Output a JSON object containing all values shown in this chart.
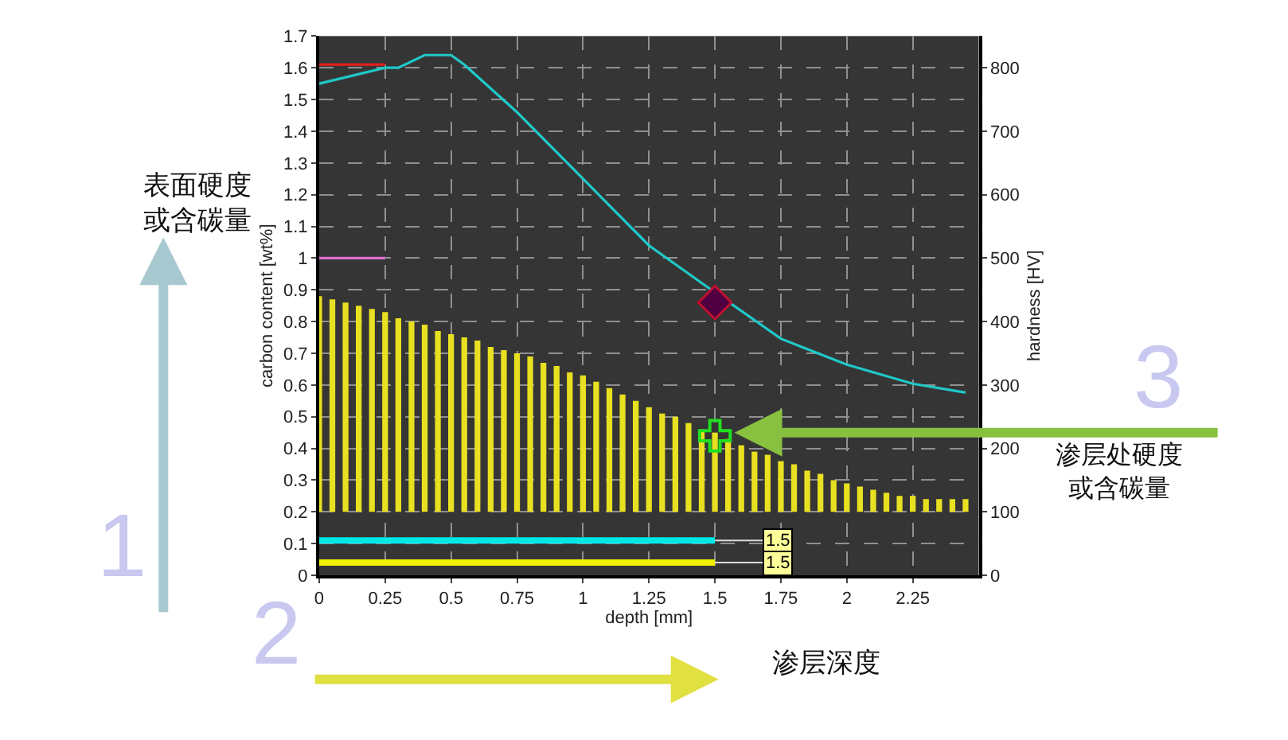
{
  "chart_data": {
    "type": "bar",
    "xlabel": "depth [mm]",
    "ylabel": "carbon content [wt%]",
    "y2label": "hardness [HV]",
    "xlim": [
      0,
      2.5
    ],
    "xticks": [
      0,
      0.25,
      0.5,
      0.75,
      1,
      1.25,
      1.5,
      1.75,
      2,
      2.25
    ],
    "ylim": [
      0,
      1.7
    ],
    "yticks": [
      0,
      0.1,
      0.2,
      0.3,
      0.4,
      0.5,
      0.6,
      0.7,
      0.8,
      0.9,
      1,
      1.1,
      1.2,
      1.3,
      1.4,
      1.5,
      1.6,
      1.7
    ],
    "y2lim": [
      0,
      850
    ],
    "y2ticks": [
      0,
      100,
      200,
      300,
      400,
      500,
      600,
      700,
      800
    ],
    "grid": true,
    "series": [
      {
        "color": "#e8e020",
        "x": [
          0,
          0.05,
          0.1,
          0.15,
          0.2,
          0.25,
          0.3,
          0.35,
          0.4,
          0.45,
          0.5,
          0.55,
          0.6,
          0.65,
          0.7,
          0.75,
          0.8,
          0.85,
          0.9,
          0.95,
          1.0,
          1.05,
          1.1,
          1.15,
          1.2,
          1.25,
          1.3,
          1.35,
          1.4,
          1.45,
          1.5,
          1.55,
          1.6,
          1.65,
          1.7,
          1.75,
          1.8,
          1.85,
          1.9,
          1.95,
          2.0,
          2.05,
          2.1,
          2.15,
          2.2,
          2.25,
          2.3,
          2.35,
          2.4,
          2.45
        ],
        "base": [
          0.2,
          0.2,
          0.2,
          0.2,
          0.2,
          0.2,
          0.2,
          0.2,
          0.2,
          0.2,
          0.2,
          0.2,
          0.2,
          0.2,
          0.2,
          0.2,
          0.2,
          0.2,
          0.2,
          0.2,
          0.2,
          0.2,
          0.2,
          0.2,
          0.2,
          0.2,
          0.2,
          0.2,
          0.2,
          0.2,
          0.2,
          0.2,
          0.2,
          0.2,
          0.2,
          0.2,
          0.2,
          0.2,
          0.2,
          0.2,
          0.2,
          0.2,
          0.2,
          0.2,
          0.2,
          0.2,
          0.2,
          0.2,
          0.2,
          0.2
        ],
        "values": [
          0.68,
          0.67,
          0.66,
          0.65,
          0.64,
          0.63,
          0.61,
          0.6,
          0.59,
          0.57,
          0.56,
          0.55,
          0.54,
          0.52,
          0.51,
          0.5,
          0.49,
          0.47,
          0.46,
          0.44,
          0.43,
          0.41,
          0.39,
          0.37,
          0.35,
          0.33,
          0.31,
          0.3,
          0.28,
          0.26,
          0.25,
          0.23,
          0.21,
          0.19,
          0.18,
          0.16,
          0.15,
          0.13,
          0.12,
          0.1,
          0.09,
          0.08,
          0.07,
          0.06,
          0.05,
          0.05,
          0.04,
          0.04,
          0.04,
          0.04
        ]
      },
      {
        "type": "line",
        "axis": "y2",
        "color": "#20c8c8",
        "x": [
          0,
          0.25,
          0.3,
          0.4,
          0.5,
          0.55,
          0.75,
          1.0,
          1.25,
          1.5,
          1.75,
          2.0,
          2.25,
          2.45
        ],
        "values": [
          775,
          800,
          800,
          820,
          820,
          805,
          730,
          625,
          520,
          446,
          373,
          332,
          302,
          288
        ]
      },
      {
        "type": "scatter",
        "axis": "y2",
        "marker": "diamond",
        "color": "#500040",
        "x": [
          1.5
        ],
        "values": [
          430
        ]
      },
      {
        "type": "scatter",
        "marker": "cross",
        "color": "#20e020",
        "x": [
          1.5
        ],
        "values": [
          0.44
        ]
      },
      {
        "type": "line",
        "color": "#e02020",
        "x": [
          0,
          0.25
        ],
        "values": [
          1.61,
          1.61
        ]
      },
      {
        "type": "line",
        "color": "#e070d0",
        "x": [
          0,
          0.25
        ],
        "values": [
          1.0,
          1.0
        ]
      },
      {
        "type": "line",
        "color": "#00e8e8",
        "x": [
          0,
          1.5
        ],
        "values": [
          0.11,
          0.11
        ]
      },
      {
        "type": "line",
        "color": "#f0f000",
        "x": [
          0,
          1.5
        ],
        "values": [
          0.04,
          0.04
        ]
      }
    ],
    "annotations": [
      {
        "text": "1.5",
        "x": 1.5,
        "y": 0.11
      },
      {
        "text": "1.5",
        "x": 1.5,
        "y": 0.04
      },
      "表面硬度或含碳量",
      "1",
      "2",
      "渗层深度",
      "3",
      "渗层处硬度或含碳量"
    ]
  }
}
